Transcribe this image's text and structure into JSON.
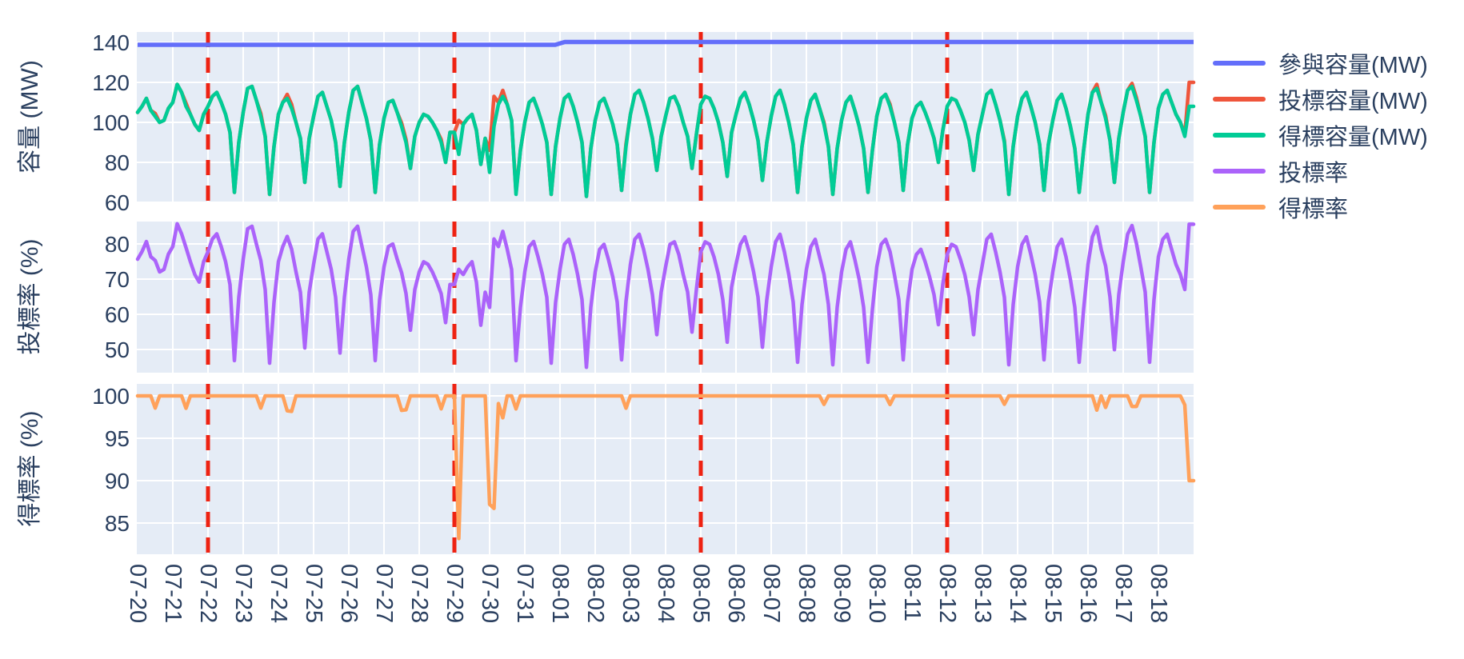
{
  "chart_data": {
    "type": "line",
    "x": {
      "labels": [
        "07-20",
        "07-21",
        "07-22",
        "07-23",
        "07-24",
        "07-25",
        "07-26",
        "07-27",
        "07-28",
        "07-29",
        "07-30",
        "07-31",
        "08-01",
        "08-02",
        "08-03",
        "08-04",
        "08-05",
        "08-06",
        "08-07",
        "08-08",
        "08-09",
        "08-10",
        "08-11",
        "08-12",
        "08-13",
        "08-14",
        "08-15",
        "08-16",
        "08-17",
        "08-18"
      ],
      "days": 30,
      "samples_per_day": 8,
      "tick_angle_deg": 90
    },
    "subplots": [
      {
        "ylabel": "容量 (MW)",
        "yticks": [
          140,
          120,
          100,
          80,
          60
        ]
      },
      {
        "ylabel": "投標率 (%)",
        "yticks": [
          80,
          70,
          60,
          50
        ]
      },
      {
        "ylabel": "得標率 (%)",
        "yticks": [
          100,
          95,
          90,
          85
        ]
      }
    ],
    "series": [
      {
        "name": "參與容量(MW)",
        "color": "#636efa",
        "subplot": 0,
        "kind": "step",
        "before": 138.8,
        "after": 140.2,
        "step_sample": 96
      },
      {
        "name": "投標容量(MW)",
        "color": "#ef553b",
        "subplot": 0,
        "kind": "awarded_with_overrides",
        "overrides": [
          [
            4,
            104.5
          ],
          [
            11,
            109.6
          ],
          [
            28,
            104.5
          ],
          [
            34,
            114
          ],
          [
            35,
            109
          ],
          [
            60,
            99.7
          ],
          [
            61,
            91.5
          ],
          [
            69,
            91.4
          ],
          [
            73,
            101
          ],
          [
            80,
            86
          ],
          [
            81,
            113
          ],
          [
            82,
            110
          ],
          [
            83,
            116
          ],
          [
            86,
            65
          ],
          [
            111,
            89.3
          ],
          [
            156,
            100
          ],
          [
            171,
            109.1
          ],
          [
            197,
            90.9
          ],
          [
            218,
            119
          ],
          [
            220,
            103.4
          ],
          [
            226,
            119.5
          ],
          [
            227,
            112.4
          ],
          [
            238,
            94
          ],
          [
            239,
            120
          ]
        ]
      },
      {
        "name": "得標容量(MW)",
        "color": "#00cc96",
        "subplot": 0,
        "kind": "values",
        "values": [
          105,
          108,
          112,
          106,
          103,
          100,
          101,
          107,
          110,
          119,
          115,
          108,
          104,
          99,
          96,
          104,
          108,
          113,
          115,
          110,
          104,
          95,
          65,
          90,
          105,
          117,
          118,
          111,
          103,
          93,
          64,
          88,
          104,
          110,
          112,
          107,
          100,
          92,
          70,
          92,
          103,
          113,
          115,
          108,
          101,
          90,
          68,
          90,
          105,
          116,
          118,
          110,
          102,
          91,
          65,
          89,
          102,
          110,
          111,
          105,
          98,
          90,
          77,
          93,
          100,
          104,
          103,
          100,
          96,
          90,
          80,
          95,
          95,
          84,
          99,
          102,
          104,
          96,
          79,
          92,
          75,
          98,
          109,
          113,
          109,
          101,
          64,
          86,
          100,
          110,
          112,
          106,
          99,
          90,
          64,
          88,
          102,
          112,
          114,
          108,
          100,
          90,
          63,
          87,
          101,
          110,
          112,
          106,
          99,
          89,
          66,
          88,
          104,
          114,
          116,
          110,
          102,
          92,
          76,
          93,
          103,
          112,
          113,
          108,
          100,
          93,
          77,
          94,
          109,
          113,
          112,
          107,
          100,
          90,
          73,
          95,
          104,
          112,
          115,
          109,
          101,
          91,
          71,
          90,
          103,
          113,
          116,
          109,
          100,
          89,
          65,
          88,
          102,
          111,
          114,
          107,
          99,
          88,
          64,
          87,
          101,
          110,
          113,
          106,
          98,
          87,
          65,
          86,
          103,
          112,
          114,
          108,
          100,
          90,
          66,
          89,
          102,
          108,
          110,
          105,
          99,
          92,
          80,
          96,
          108,
          112,
          111,
          106,
          100,
          91,
          76,
          94,
          104,
          114,
          116,
          109,
          101,
          90,
          64,
          88,
          103,
          112,
          115,
          108,
          100,
          89,
          66,
          89,
          101,
          111,
          114,
          107,
          98,
          87,
          65,
          86,
          104,
          115,
          117,
          110,
          102,
          91,
          70,
          92,
          105,
          116,
          118,
          111,
          103,
          93,
          65,
          90,
          107,
          114,
          116,
          110,
          104,
          100,
          93,
          108
        ]
      },
      {
        "name": "投標率",
        "color": "#ab63fa",
        "subplot": 1,
        "kind": "derived",
        "formula": "bid / participation * 100"
      },
      {
        "name": "得標率",
        "color": "#ffa15a",
        "subplot": 2,
        "kind": "derived",
        "formula": "awarded / bid * 100"
      }
    ],
    "vlines": {
      "dates": [
        "07-22",
        "07-29",
        "08-05",
        "08-12"
      ],
      "day_indices": [
        2,
        9,
        16,
        23
      ],
      "color": "#ee2212",
      "style": "dash"
    },
    "colors": {
      "plot_bg": "#e5ecf6",
      "grid": "#ffffff",
      "text": "#2a3f5f"
    }
  }
}
